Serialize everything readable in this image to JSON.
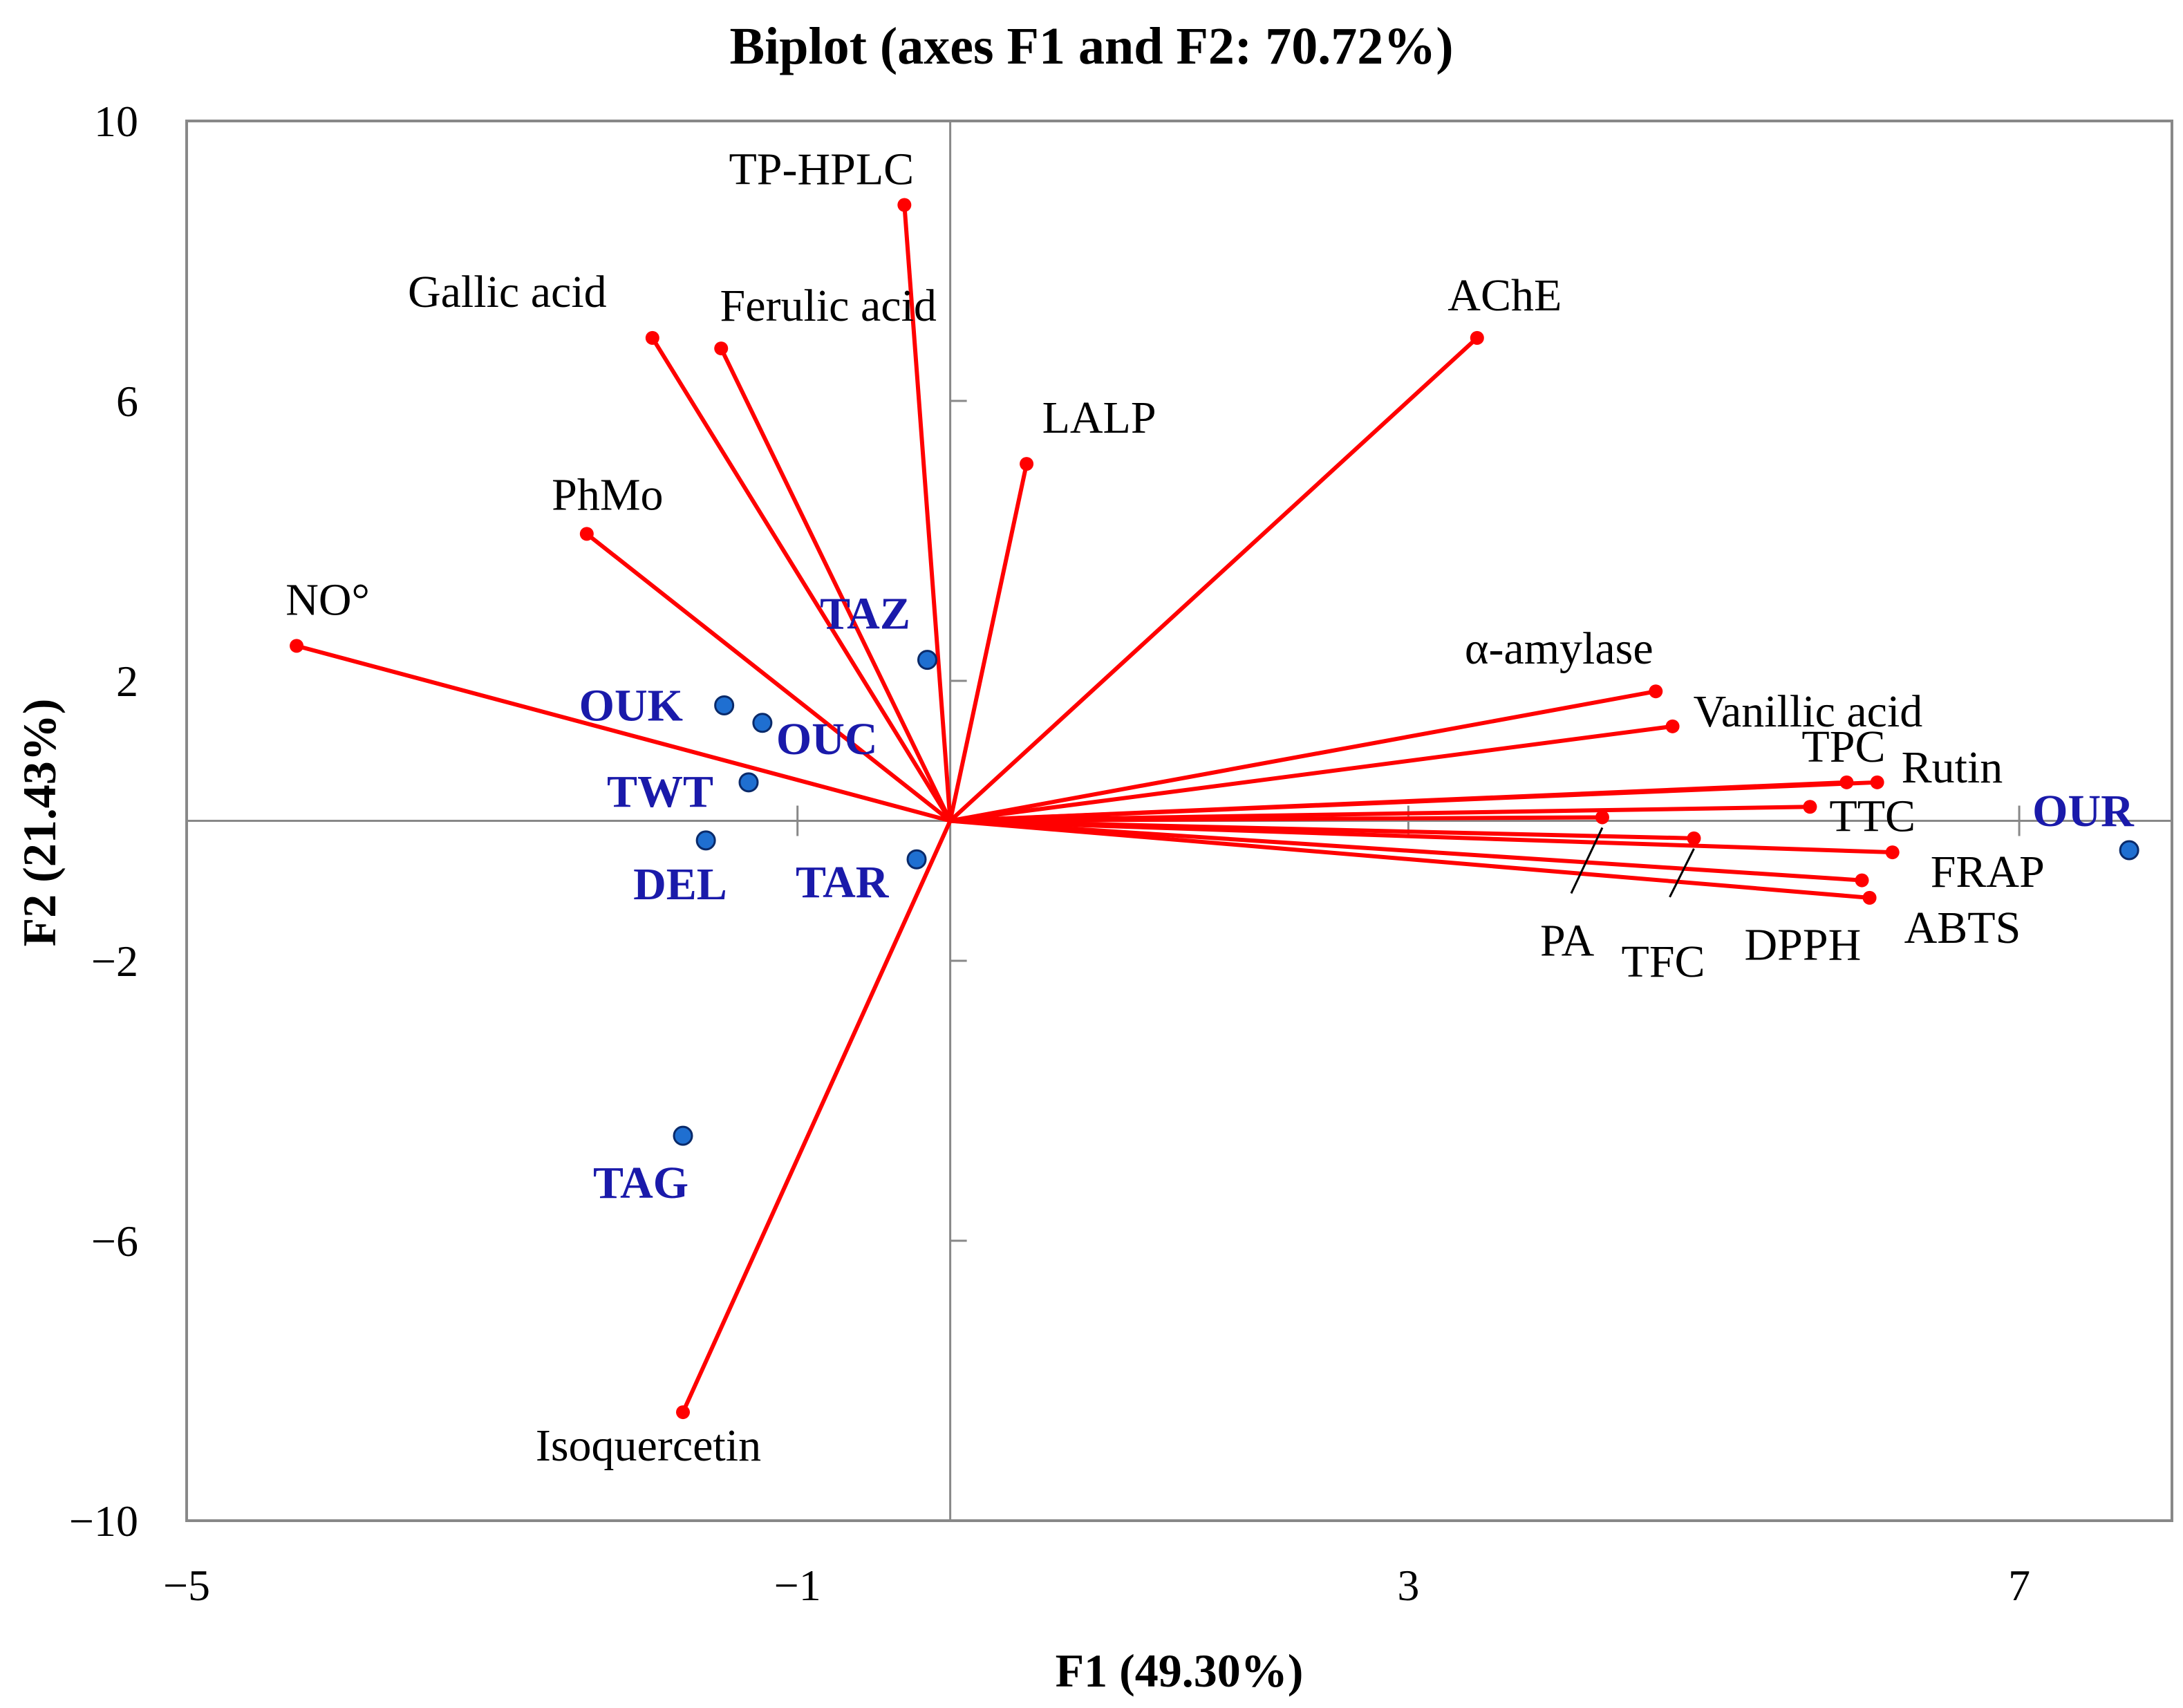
{
  "chart_data": {
    "type": "scatter",
    "subtype": "biplot",
    "title": "Biplot (axes F1 and F2: 70.72%)",
    "xlabel": "F1 (49.30%)",
    "ylabel": "F2 (21.43%)",
    "xlim": [
      -5,
      8
    ],
    "ylim": [
      -10,
      10
    ],
    "x_ticks": [
      {
        "value": -5,
        "label": "−5"
      },
      {
        "value": -1,
        "label": "−1"
      },
      {
        "value": 3,
        "label": "3"
      },
      {
        "value": 7,
        "label": "7"
      }
    ],
    "y_ticks": [
      {
        "value": 10,
        "label": "10"
      },
      {
        "value": 6,
        "label": "6"
      },
      {
        "value": 2,
        "label": "2"
      },
      {
        "value": -2,
        "label": "−2"
      },
      {
        "value": -6,
        "label": "−6"
      },
      {
        "value": -10,
        "label": "−10"
      }
    ],
    "minor_ticks_x": [
      -1,
      3,
      7
    ],
    "minor_ticks_y": [
      6,
      2,
      -2,
      -6
    ],
    "colors": {
      "variables": "#ff0000",
      "observations_fill": "#1f6fd1",
      "observations_stroke": "#0a2a6a",
      "observation_labels": "#1a1aaa",
      "frame": "#888888"
    },
    "variables": [
      {
        "name": "TP-HPLC",
        "x": -0.3,
        "y": 8.8
      },
      {
        "name": "Gallic acid",
        "x": -1.95,
        "y": 6.9
      },
      {
        "name": "Ferulic acid",
        "x": -1.5,
        "y": 6.75
      },
      {
        "name": "LALP",
        "x": 0.5,
        "y": 5.1
      },
      {
        "name": "AChE",
        "x": 3.45,
        "y": 6.9
      },
      {
        "name": "PhMo",
        "x": -2.38,
        "y": 4.1
      },
      {
        "name": "NO°",
        "x": -4.28,
        "y": 2.5
      },
      {
        "name": "α-amylase",
        "x": 4.62,
        "y": 1.85
      },
      {
        "name": "Vanillic acid",
        "x": 4.73,
        "y": 1.35
      },
      {
        "name": "TPC",
        "x": 5.87,
        "y": 0.55
      },
      {
        "name": "Rutin",
        "x": 6.07,
        "y": 0.55
      },
      {
        "name": "TTC",
        "x": 5.63,
        "y": 0.2
      },
      {
        "name": "PA",
        "x": 4.27,
        "y": 0.05
      },
      {
        "name": "TFC",
        "x": 4.87,
        "y": -0.25
      },
      {
        "name": "FRAP",
        "x": 6.17,
        "y": -0.45
      },
      {
        "name": "DPPH",
        "x": 5.97,
        "y": -0.85
      },
      {
        "name": "ABTS",
        "x": 6.02,
        "y": -1.1
      },
      {
        "name": "Isoquercetin",
        "x": -1.75,
        "y": -8.45
      }
    ],
    "observations": [
      {
        "name": "TAZ",
        "x": -0.15,
        "y": 2.3
      },
      {
        "name": "OUK",
        "x": -1.48,
        "y": 1.65
      },
      {
        "name": "OUC",
        "x": -1.23,
        "y": 1.4
      },
      {
        "name": "TWT",
        "x": -1.32,
        "y": 0.55
      },
      {
        "name": "DEL",
        "x": -1.6,
        "y": -0.28
      },
      {
        "name": "TAR",
        "x": -0.22,
        "y": -0.55
      },
      {
        "name": "TAG",
        "x": -1.75,
        "y": -4.5
      },
      {
        "name": "OUR",
        "x": 7.72,
        "y": -0.42
      }
    ]
  }
}
